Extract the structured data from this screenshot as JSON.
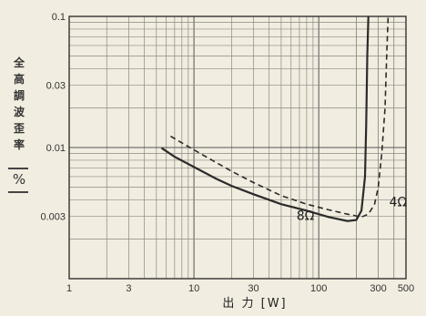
{
  "chart_data": {
    "type": "line",
    "xscale": "log",
    "yscale": "log",
    "xlim": [
      1,
      500
    ],
    "ylim": [
      0.001,
      0.1
    ],
    "x_ticks": [
      1,
      3,
      10,
      30,
      100,
      300,
      500
    ],
    "x_tick_labels": [
      "1",
      "3",
      "10",
      "30",
      "100",
      "300",
      "500"
    ],
    "y_ticks": [
      0.003,
      0.01,
      0.03,
      0.1
    ],
    "y_tick_labels": [
      "0.003",
      "0.01",
      "0.03",
      "0.1"
    ],
    "ylabel_chars": [
      "全",
      "高",
      "調",
      "波",
      "歪",
      "率"
    ],
    "ylabel_unit": "%",
    "xlabel": "出  力  [W]",
    "grid": true,
    "series": [
      {
        "name": "8Ω",
        "label": "8Ω",
        "style": "solid",
        "x": [
          5.5,
          7,
          10,
          15,
          20,
          30,
          50,
          80,
          120,
          170,
          200,
          220,
          235,
          240,
          245,
          250
        ],
        "y": [
          0.0099,
          0.0085,
          0.0071,
          0.0058,
          0.0051,
          0.0044,
          0.0037,
          0.0033,
          0.00295,
          0.00275,
          0.0028,
          0.0033,
          0.006,
          0.015,
          0.05,
          0.1
        ]
      },
      {
        "name": "4Ω",
        "label": "4Ω",
        "style": "dashed",
        "x": [
          6.5,
          10,
          15,
          20,
          30,
          50,
          80,
          120,
          170,
          220,
          250,
          280,
          300,
          320,
          340,
          350,
          360
        ],
        "y": [
          0.0122,
          0.0096,
          0.0077,
          0.0066,
          0.0054,
          0.0043,
          0.0037,
          0.00335,
          0.0031,
          0.00295,
          0.0031,
          0.0037,
          0.005,
          0.009,
          0.02,
          0.05,
          0.1
        ]
      }
    ]
  }
}
